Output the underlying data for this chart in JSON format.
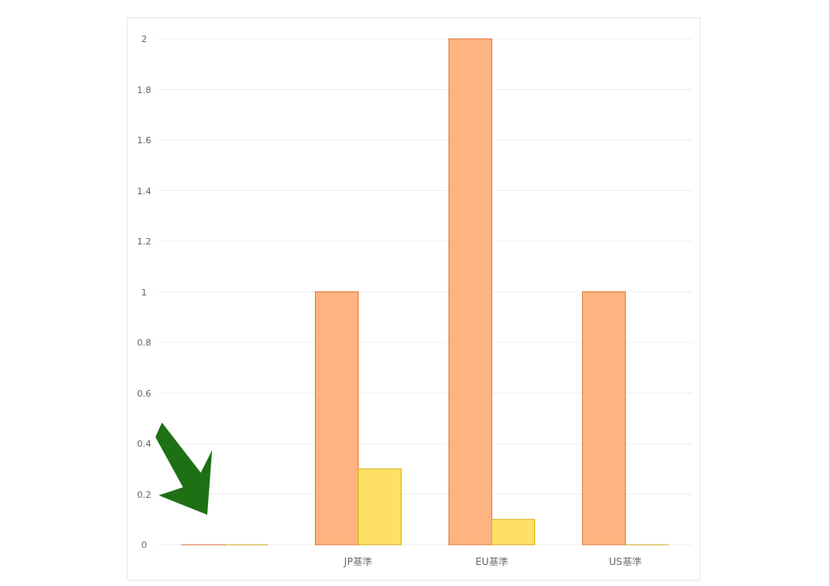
{
  "chart_data": {
    "type": "bar",
    "categories": [
      null,
      "JP基準",
      "EU基準",
      "US基準"
    ],
    "series": [
      {
        "color": "#ffb380",
        "values": [
          0,
          1,
          2,
          1
        ]
      },
      {
        "color": "#ffe066",
        "values": [
          0,
          0.3,
          0.1,
          0
        ]
      }
    ],
    "ylim": [
      0,
      2
    ],
    "yticks": [
      0,
      0.2,
      0.4,
      0.6,
      0.8,
      1,
      1.2,
      1.4,
      1.6,
      1.8,
      2
    ],
    "grid": "y"
  }
}
